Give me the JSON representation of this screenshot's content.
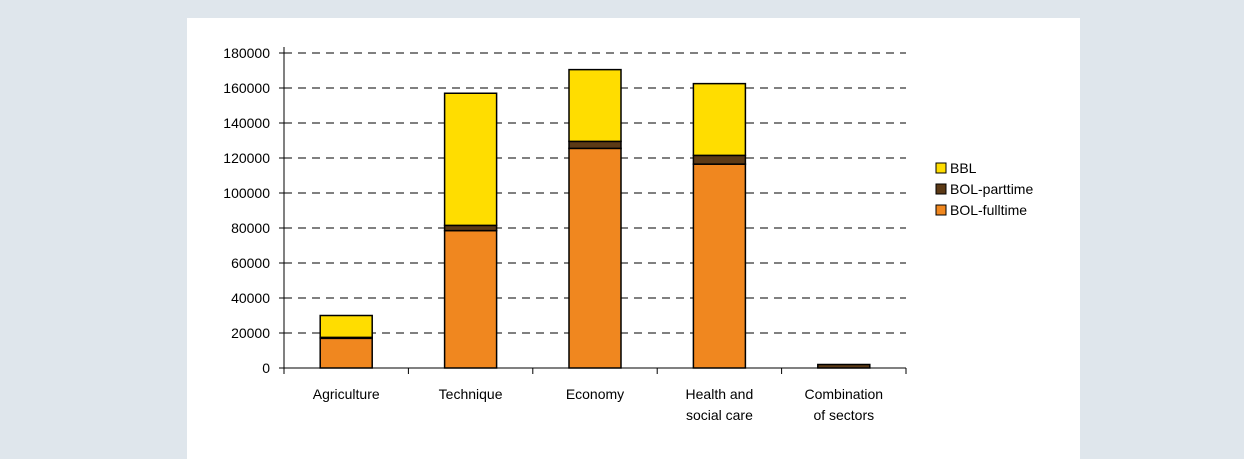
{
  "chart_data": {
    "type": "bar",
    "stacked": true,
    "categories": [
      [
        "Agriculture"
      ],
      [
        "Technique"
      ],
      [
        "Economy"
      ],
      [
        "Health and",
        "social care"
      ],
      [
        "Combination",
        "of sectors"
      ]
    ],
    "series": [
      {
        "name": "BOL-fulltime",
        "color": "#f0871f",
        "values": [
          17000,
          78500,
          125500,
          116500,
          0
        ]
      },
      {
        "name": "BOL-parttime",
        "color": "#5c3a16",
        "values": [
          500,
          3000,
          4000,
          5000,
          2000
        ]
      },
      {
        "name": "BBL",
        "color": "#ffdd00",
        "values": [
          12500,
          75500,
          41000,
          41000,
          0
        ]
      }
    ],
    "ylim": [
      0,
      180000
    ],
    "yticks": [
      "0",
      "20000",
      "40000",
      "60000",
      "80000",
      "100000",
      "120000",
      "140000",
      "160000",
      "180000"
    ],
    "grid": true,
    "grid_style": "dashed",
    "legend_position": "right",
    "legend_order": [
      "BBL",
      "BOL-parttime",
      "BOL-fulltime"
    ],
    "title": "",
    "xlabel": "",
    "ylabel": ""
  }
}
